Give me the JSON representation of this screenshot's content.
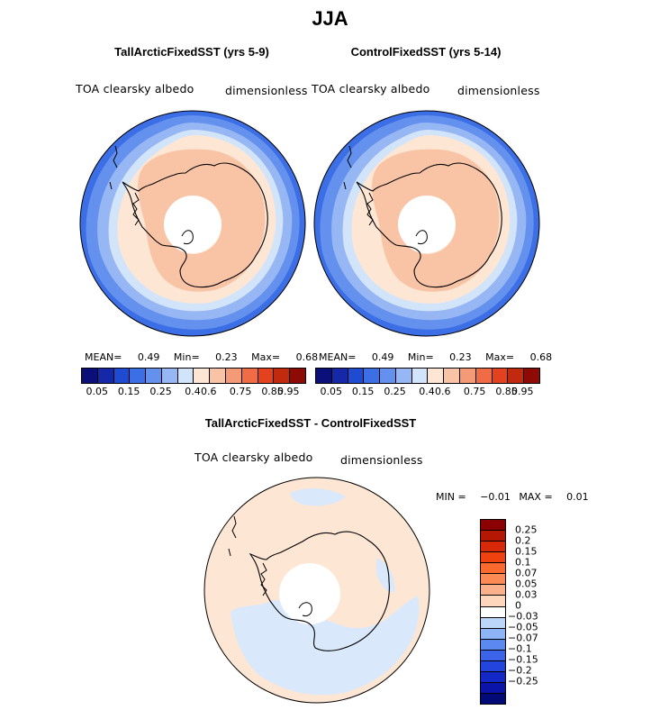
{
  "title": "JJA",
  "panels": [
    {
      "title": "TallArcticFixedSST (yrs 5-9)",
      "variable": "TOA clearsky albedo",
      "units": "dimensionless",
      "stats": {
        "mean_label": "MEAN=",
        "mean": "0.49",
        "min_label": "Min=",
        "min": "0.23",
        "max_label": "Max=",
        "max": "0.68"
      }
    },
    {
      "title": "ControlFixedSST (yrs 5-14)",
      "variable": "TOA clearsky albedo",
      "units": "dimensionless",
      "stats": {
        "mean_label": "MEAN=",
        "mean": "0.49",
        "min_label": "Min=",
        "min": "0.23",
        "max_label": "Max=",
        "max": "0.68"
      }
    }
  ],
  "colorbar_top": {
    "colors": [
      "#0a0f7a",
      "#1428a8",
      "#1e4bd2",
      "#3c6ee6",
      "#6491ee",
      "#96b6f4",
      "#d2e4fa",
      "#fde6d4",
      "#f9c4a6",
      "#f59a76",
      "#ef6c46",
      "#e4421e",
      "#c22a10",
      "#8e0a04"
    ],
    "labels": [
      "0.05",
      "0.15",
      "0.25",
      "0.4",
      "0.6",
      "0.75",
      "0.85",
      "0.95"
    ]
  },
  "diff_panel": {
    "title": "TallArcticFixedSST - ControlFixedSST",
    "variable": "TOA clearsky albedo",
    "units": "dimensionless",
    "stats": {
      "min_label": "MIN =",
      "min": "−0.01",
      "max_label": "MAX =",
      "max": "0.01"
    }
  },
  "colorbar_diff": {
    "colors": [
      "#8b0000",
      "#b41804",
      "#d8280a",
      "#f0420e",
      "#fa6a2e",
      "#fc8a54",
      "#fbb08c",
      "#fdd6bc",
      "#ffffff",
      "#bcd6fa",
      "#8cb4f6",
      "#5a8af0",
      "#3c64e8",
      "#2444de",
      "#1428c8",
      "#0a14a8",
      "#020a78"
    ],
    "labels": [
      "0.25",
      "0.2",
      "0.15",
      "0.1",
      "0.07",
      "0.05",
      "0.03",
      "0",
      "−0.03",
      "−0.05",
      "−0.07",
      "−0.1",
      "−0.15",
      "−0.2",
      "−0.25"
    ]
  },
  "map_colors": {
    "ocean_outer": "#3c6ee6",
    "ocean_mid": "#6491ee",
    "ocean_inner": "#96b6f4",
    "sea_ice_edge": "#d2e4fa",
    "ice_light": "#fde6d4",
    "ice_core": "#f9c4a6",
    "diff_positive": "#fde6d4",
    "diff_negative": "#d9e8fb",
    "coast": "#000000"
  }
}
